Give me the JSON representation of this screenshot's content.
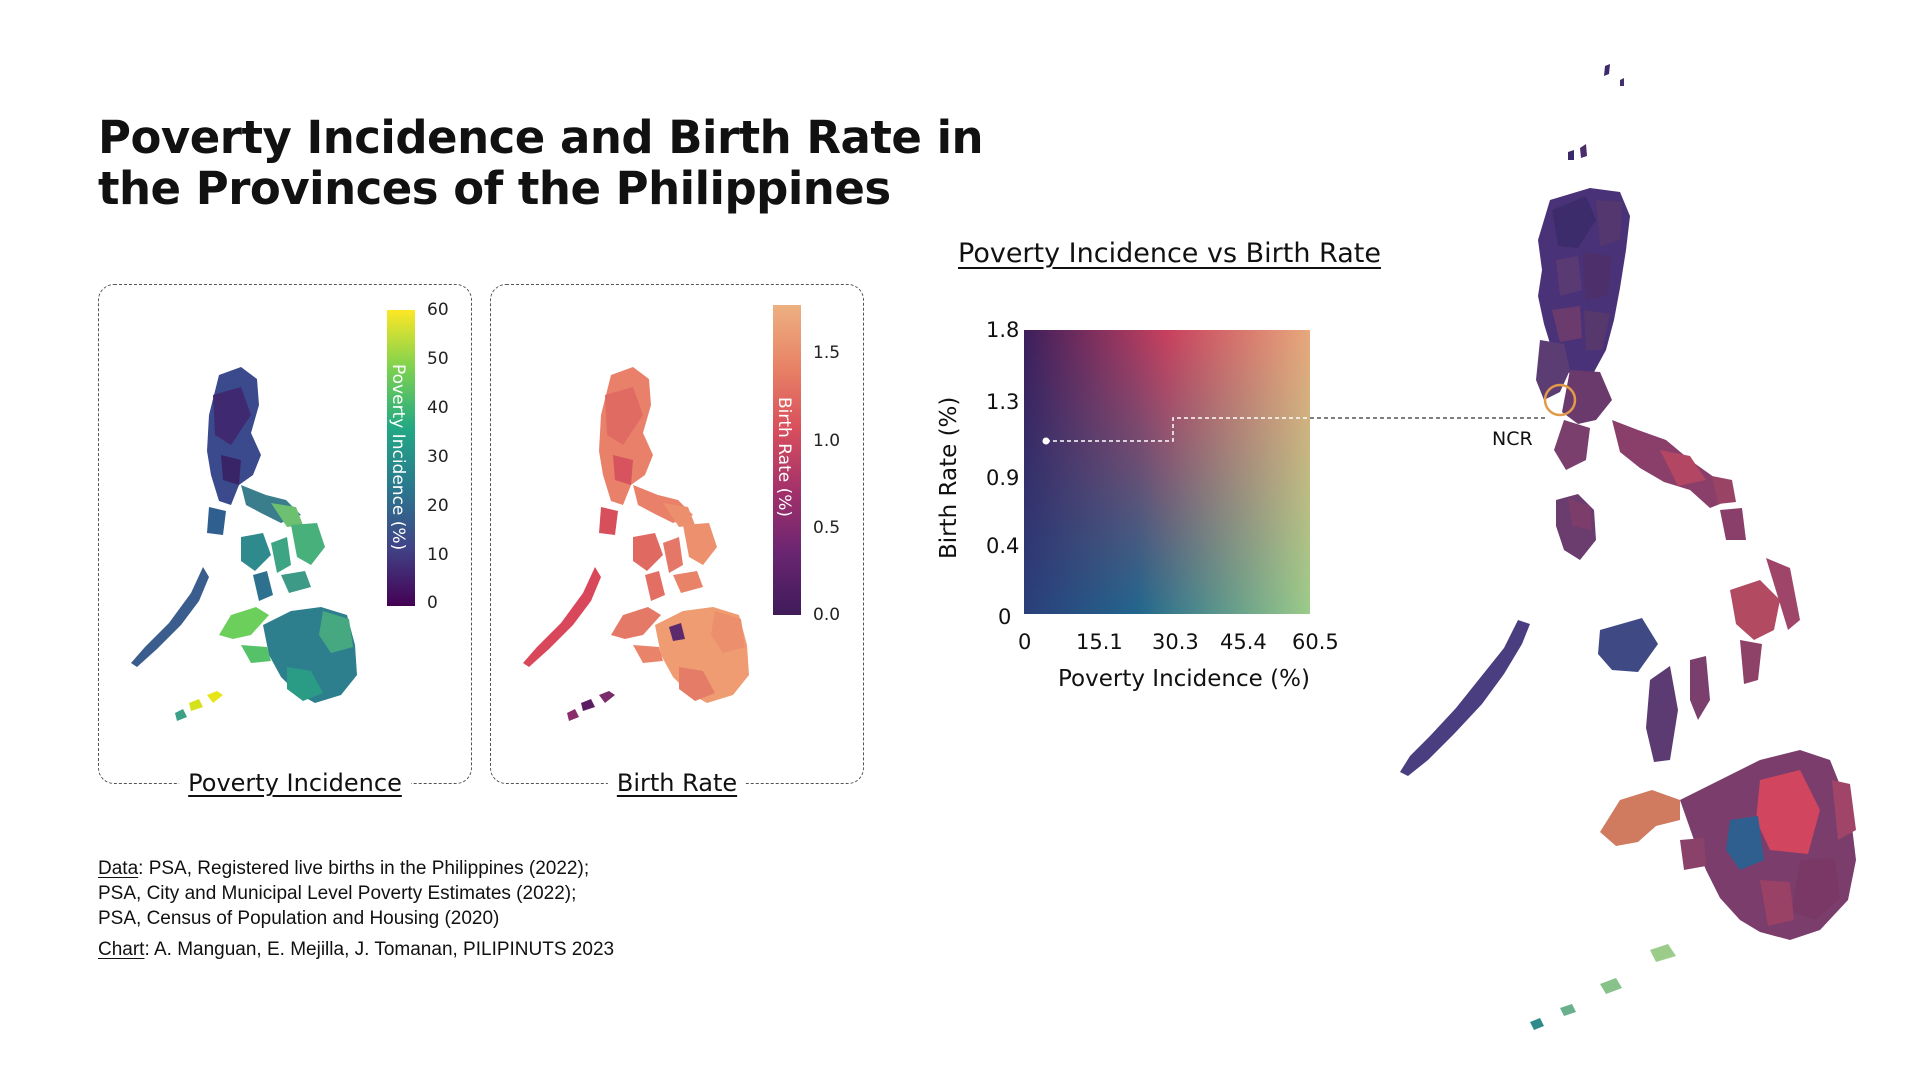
{
  "header": {
    "title": "Poverty Incidence and Birth Rate in the Provinces of the Philippines"
  },
  "panels": {
    "poverty": {
      "title": "Poverty Incidence",
      "colorbar_label": "Poverty Incidence (%)",
      "ticks": [
        "60",
        "50",
        "40",
        "30",
        "20",
        "10",
        "0"
      ],
      "colormap": "viridis"
    },
    "birth": {
      "title": "Birth Rate",
      "colorbar_label": "Birth Rate (%)",
      "ticks": [
        "1.5",
        "1.0",
        "0.5",
        "0.0"
      ],
      "colormap": "flare"
    }
  },
  "scatter": {
    "title": "Poverty Incidence vs Birth Rate",
    "xlabel": "Poverty Incidence (%)",
    "ylabel": "Birth Rate (%)",
    "xticks": [
      "0",
      "15.1",
      "30.3",
      "45.4",
      "60.5"
    ],
    "yticks": [
      "1.8",
      "1.3",
      "0.9",
      "0.4",
      "0"
    ],
    "highlight_point": {
      "poverty": 2.0,
      "birth_rate": 1.08
    }
  },
  "callout": {
    "label": "NCR"
  },
  "colors": {
    "bivariate_top_left": "#3c1f5c",
    "bivariate_top_right": "#e8a87c",
    "bivariate_bottom_left": "#2b3f7a",
    "bivariate_bottom_right": "#9ccc8a",
    "ncr_ring": "#e09a4a"
  },
  "source": {
    "data_label": "Data",
    "data_lines": [
      ": PSA, Registered live births in the Philippines (2022);",
      "PSA, City and Municipal Level Poverty Estimates (2022);",
      "PSA, Census of Population and Housing (2020)"
    ],
    "chart_label": "Chart",
    "chart_line": ": A. Manguan, E. Mejilla, J. Tomanan, PILIPINUTS 2023"
  }
}
